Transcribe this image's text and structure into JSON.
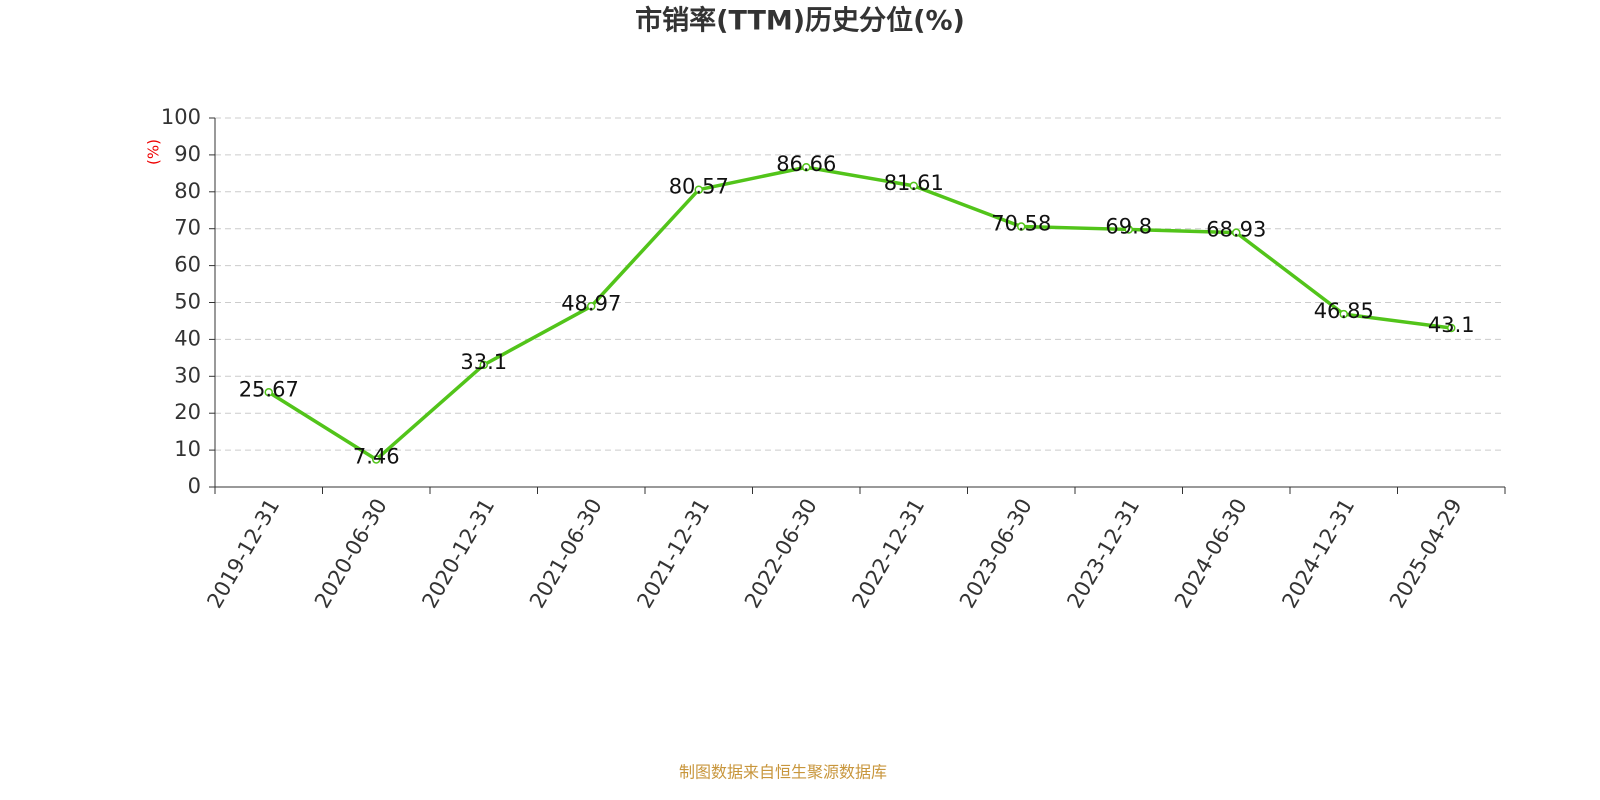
{
  "chart_data": {
    "type": "line",
    "title": "市销率(TTM)历史分位(%)",
    "y_label": "(%)",
    "categories": [
      "2019-12-31",
      "2020-06-30",
      "2020-12-31",
      "2021-06-30",
      "2021-12-31",
      "2022-06-30",
      "2022-12-31",
      "2023-06-30",
      "2023-12-31",
      "2024-06-30",
      "2024-12-31",
      "2025-04-29"
    ],
    "series": [
      {
        "name": "市销率(TTM)历史分位",
        "color": "#52c41a",
        "values": [
          25.67,
          7.46,
          33.1,
          48.97,
          80.57,
          86.66,
          81.61,
          70.58,
          69.8,
          68.93,
          46.85,
          43.1
        ]
      }
    ],
    "ylim": [
      0,
      100
    ],
    "yticks": [
      0,
      10,
      20,
      30,
      40,
      50,
      60,
      70,
      80,
      90,
      100
    ],
    "grid": true,
    "source": "制图数据来自恒生聚源数据库"
  }
}
